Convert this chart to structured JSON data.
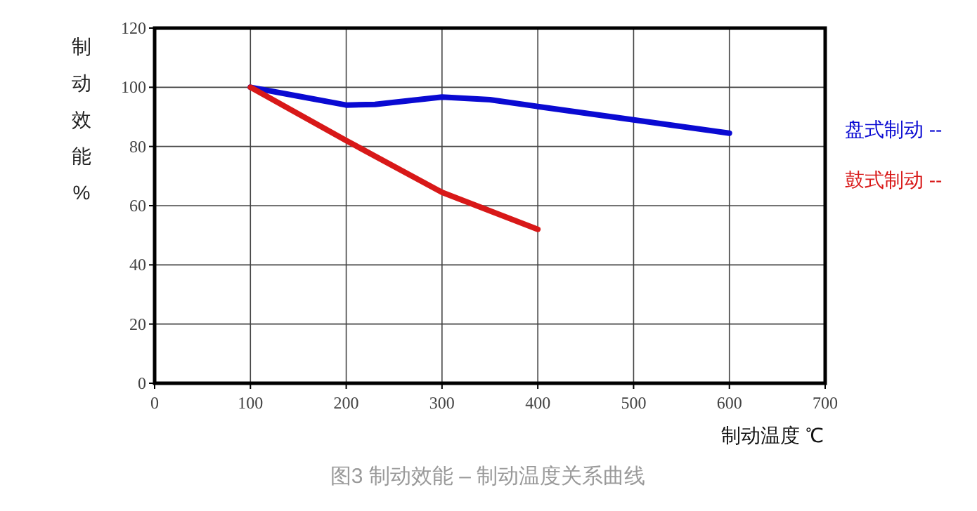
{
  "chart_data": {
    "type": "line",
    "xlabel": "制动温度 ℃",
    "ylabel": "制动效能%",
    "xlim": [
      0,
      700
    ],
    "xticks": [
      0,
      100,
      200,
      300,
      400,
      500,
      600,
      700
    ],
    "ylim": [
      0,
      120
    ],
    "yticks": [
      0,
      20,
      40,
      60,
      80,
      100,
      120
    ],
    "grid": true,
    "legend": "right",
    "marker": "none",
    "line_style": "solid",
    "series": [
      {
        "name": "盘式制动 --",
        "color": "#0a0ad2",
        "x": [
          100,
          150,
          200,
          230,
          300,
          350,
          400,
          500,
          600
        ],
        "values": [
          100,
          97,
          94,
          94.2,
          96.7,
          95.8,
          93.5,
          89,
          84.5
        ]
      },
      {
        "name": "鼓式制动 --",
        "color": "#d81818",
        "x": [
          100,
          200,
          300,
          400
        ],
        "values": [
          100,
          82,
          64.5,
          52
        ]
      }
    ],
    "annotations": [
      "图3 制动效能 – 制动温度关系曲线"
    ]
  }
}
